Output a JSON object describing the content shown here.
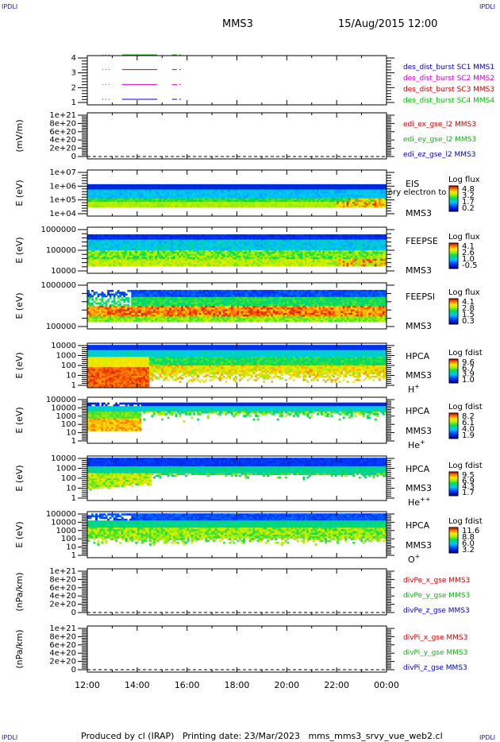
{
  "header": {
    "corner_label": "IPDLI",
    "spacecraft": "MMS3",
    "date_time": "15/Aug/2015 12:00"
  },
  "footer": {
    "produced_by": "Produced by cl (IRAP)",
    "printing_date": "Printing date: 23/Mar/2023",
    "file_name": "mms_mms3_srvy_vue_web2.cl"
  },
  "colors": {
    "blue": "#0000c8",
    "red": "#d20000",
    "green": "#00be00",
    "magenta": "#d200d2",
    "frame": "#000000"
  },
  "chart_data": {
    "x_axis": {
      "range": [
        "2015-08-15 12:00",
        "2015-08-16 00:00"
      ],
      "tick_labels": [
        "12:00",
        "14:00",
        "16:00",
        "18:00",
        "20:00",
        "22:00",
        "00:00"
      ]
    },
    "panels": [
      {
        "id": "burst",
        "type": "line",
        "yticks": [
          "1",
          "2",
          "3",
          "4"
        ],
        "legend": [
          {
            "text": "des_dist_burst SC1 MMS1",
            "color": "blue"
          },
          {
            "text": "des_dist_burst SC2 MMS2",
            "color": "magenta"
          },
          {
            "text": "des_dist_burst SC3 MMS3",
            "color": "red"
          },
          {
            "text": "des_dist_burst SC4 MMS4",
            "color": "green"
          }
        ],
        "series": [
          {
            "name": "des_dist_burst SC1 MMS1",
            "level": 1,
            "color": "blue",
            "dots": [
              [
                12.6,
                12.95
              ]
            ],
            "segments": [
              [
                13.4,
                14.8
              ],
              [
                15.4,
                15.75
              ]
            ]
          },
          {
            "name": "des_dist_burst SC2 MMS2",
            "level": 2,
            "color": "magenta",
            "dots": [
              [
                12.6,
                12.95
              ]
            ],
            "segments": [
              [
                13.4,
                14.8
              ],
              [
                15.4,
                15.75
              ]
            ]
          },
          {
            "name": "des_dist_burst SC3 MMS3",
            "level": 3,
            "color": "red",
            "dots": [
              [
                12.6,
                12.95
              ]
            ],
            "segments": [
              [
                13.4,
                14.8
              ],
              [
                15.4,
                15.75
              ]
            ]
          },
          {
            "name": "des_dist_burst SC4 MMS4",
            "level": 4,
            "color": "green",
            "dots": [
              [
                12.6,
                12.95
              ]
            ],
            "segments": [
              [
                13.4,
                14.8
              ],
              [
                15.4,
                15.75
              ]
            ]
          }
        ]
      },
      {
        "id": "efield",
        "type": "line",
        "ylabel": "(mV/m)",
        "yticks": [
          "0",
          "2e+20",
          "4e+20",
          "6e+20",
          "8e+20",
          "1e+21"
        ],
        "legend": [
          {
            "text": "edi_ex_gse_l2 MMS3",
            "color": "red"
          },
          {
            "text": "edi_ey_gse_l2 MMS3",
            "color": "green"
          },
          {
            "text": "edi_ez_gse_l2 MMS3",
            "color": "blue"
          }
        ],
        "zero_line": true
      },
      {
        "id": "eis",
        "type": "heatmap",
        "ylabel": "E (eV)",
        "yticks": [
          "1e+04",
          "1e+05",
          "1e+06",
          "1e+07"
        ],
        "instrument": [
          "EIS",
          "MMS3"
        ],
        "overlap_text": "ory electron to",
        "colorbar": {
          "title": "Log flux",
          "ticks": [
            "4.8",
            "3.2",
            "1.7",
            "0.2"
          ]
        }
      },
      {
        "id": "feepse",
        "type": "heatmap",
        "ylabel": "E (eV)",
        "yticks": [
          "10000",
          "100000",
          "1000000"
        ],
        "instrument": [
          "FEEPSE",
          "MMS3"
        ],
        "colorbar": {
          "title": "Log flux",
          "ticks": [
            "4.1",
            "2.6",
            "1.0",
            "-0.5"
          ]
        }
      },
      {
        "id": "feepsi",
        "type": "heatmap",
        "ylabel": "E (eV)",
        "yticks": [
          "100000",
          "1000000"
        ],
        "instrument": [
          "FEEPSI",
          "MMS3"
        ],
        "colorbar": {
          "title": "Log flux",
          "ticks": [
            "4.1",
            "2.8",
            "1.5",
            "0.3"
          ]
        }
      },
      {
        "id": "hpca_h",
        "type": "heatmap",
        "ylabel": "E (eV)",
        "yticks": [
          "1",
          "10",
          "100",
          "1000",
          "10000"
        ],
        "instrument": [
          "HPCA",
          "MMS3"
        ],
        "species": "H",
        "species_sup": "+",
        "colorbar": {
          "title": "Log fdist",
          "ticks": [
            "9.6",
            "6.7",
            "3.9",
            "1.0"
          ]
        }
      },
      {
        "id": "hpca_he",
        "type": "heatmap",
        "ylabel": "E (eV)",
        "yticks": [
          "1",
          "10",
          "100",
          "1000",
          "10000",
          "100000"
        ],
        "instrument": [
          "HPCA",
          "MMS3"
        ],
        "species": "He",
        "species_sup": "+",
        "colorbar": {
          "title": "Log fdist",
          "ticks": [
            "8.2",
            "6.1",
            "4.0",
            "1.9"
          ]
        }
      },
      {
        "id": "hpca_he2",
        "type": "heatmap",
        "ylabel": "E (eV)",
        "yticks": [
          "1",
          "10",
          "100",
          "1000",
          "10000"
        ],
        "instrument": [
          "HPCA",
          "MMS3"
        ],
        "species": "He",
        "species_sup": "++",
        "colorbar": {
          "title": "Log fdist",
          "ticks": [
            "9.5",
            "6.9",
            "4.3",
            "1.7"
          ]
        }
      },
      {
        "id": "hpca_o",
        "type": "heatmap",
        "ylabel": "E (eV)",
        "yticks": [
          "1",
          "10",
          "100",
          "1000",
          "10000",
          "100000"
        ],
        "instrument": [
          "HPCA",
          "MMS3"
        ],
        "species": "O",
        "species_sup": "+",
        "colorbar": {
          "title": "Log fdist",
          "ticks": [
            "11.6",
            "8.8",
            "6.0",
            "3.2"
          ]
        }
      },
      {
        "id": "divpe",
        "type": "line",
        "ylabel": "(nPa/km)",
        "yticks": [
          "0",
          "2e+20",
          "4e+20",
          "6e+20",
          "8e+20",
          "1e+21"
        ],
        "legend": [
          {
            "text": "divPe_x_gse MMS3",
            "color": "red"
          },
          {
            "text": "divPe_y_gse MMS3",
            "color": "green"
          },
          {
            "text": "divPe_z_gse MMS3",
            "color": "blue"
          }
        ],
        "zero_line": true
      },
      {
        "id": "divpi",
        "type": "line",
        "ylabel": "(nPa/km)",
        "yticks": [
          "0",
          "2e+20",
          "4e+20",
          "6e+20",
          "8e+20",
          "1e+21"
        ],
        "legend": [
          {
            "text": "divPi_x_gse MMS3",
            "color": "red"
          },
          {
            "text": "divPi_y_gse MMS3",
            "color": "green"
          },
          {
            "text": "divPi_z_gse MMS3",
            "color": "blue"
          }
        ],
        "zero_line": true
      }
    ]
  }
}
